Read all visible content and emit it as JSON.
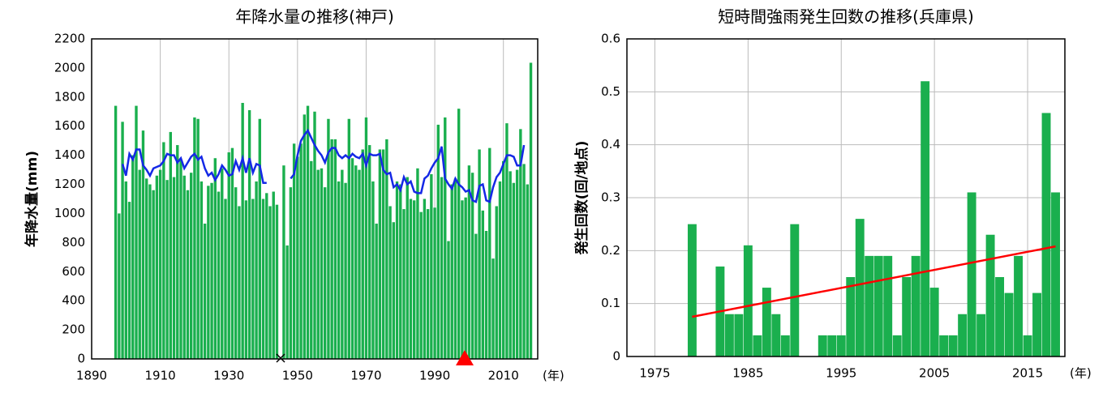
{
  "chart_data": [
    {
      "type": "bar",
      "title": "年降水量の推移(神戸)",
      "y_label": "年降水量(mm)",
      "x_unit": "(年)",
      "x": [
        1897,
        1898,
        1899,
        1900,
        1901,
        1902,
        1903,
        1904,
        1905,
        1906,
        1907,
        1908,
        1909,
        1910,
        1911,
        1912,
        1913,
        1914,
        1915,
        1916,
        1917,
        1918,
        1919,
        1920,
        1921,
        1922,
        1923,
        1924,
        1925,
        1926,
        1927,
        1928,
        1929,
        1930,
        1931,
        1932,
        1933,
        1934,
        1935,
        1936,
        1937,
        1938,
        1939,
        1940,
        1941,
        1942,
        1943,
        1944,
        1945,
        1946,
        1947,
        1948,
        1949,
        1950,
        1951,
        1952,
        1953,
        1954,
        1955,
        1956,
        1957,
        1958,
        1959,
        1960,
        1961,
        1962,
        1963,
        1964,
        1965,
        1966,
        1967,
        1968,
        1969,
        1970,
        1971,
        1972,
        1973,
        1974,
        1975,
        1976,
        1977,
        1978,
        1979,
        1980,
        1981,
        1982,
        1983,
        1984,
        1985,
        1986,
        1987,
        1988,
        1989,
        1990,
        1991,
        1992,
        1993,
        1994,
        1995,
        1996,
        1997,
        1998,
        1999,
        2000,
        2001,
        2002,
        2003,
        2004,
        2005,
        2006,
        2007,
        2008,
        2009,
        2010,
        2011,
        2012,
        2013,
        2014,
        2015,
        2016,
        2017,
        2018
      ],
      "series": [
        {
          "type": "bar",
          "color": "#1aaf4e",
          "values": [
            1740,
            1000,
            1630,
            1220,
            1080,
            1400,
            1740,
            1300,
            1570,
            1240,
            1200,
            1160,
            1260,
            1300,
            1490,
            1230,
            1560,
            1250,
            1470,
            1370,
            1260,
            1160,
            1280,
            1660,
            1650,
            1220,
            930,
            1190,
            1210,
            1380,
            1150,
            1310,
            1100,
            1420,
            1450,
            1180,
            1050,
            1760,
            1090,
            1710,
            1100,
            1220,
            1650,
            1100,
            1140,
            1050,
            1150,
            1060,
            null,
            1330,
            780,
            1180,
            1480,
            1390,
            1480,
            1680,
            1740,
            1360,
            1700,
            1300,
            1310,
            1180,
            1650,
            1510,
            1510,
            1220,
            1300,
            1210,
            1650,
            1380,
            1330,
            1300,
            1440,
            1660,
            1470,
            1220,
            930,
            1440,
            1440,
            1510,
            1050,
            940,
            1220,
            1200,
            1030,
            1250,
            1100,
            1090,
            1310,
            1010,
            1100,
            1030,
            1270,
            1040,
            1610,
            1250,
            1660,
            810,
            1200,
            1240,
            1720,
            1090,
            1110,
            1330,
            1280,
            860,
            1440,
            1020,
            880,
            1450,
            690,
            1050,
            1220,
            1360,
            1620,
            1290,
            1210,
            1300,
            1580,
            1340,
            1200,
            2036
          ]
        },
        {
          "type": "line",
          "color": "#1428e6",
          "values": [
            null,
            null,
            1340,
            1260,
            1410,
            1370,
            1440,
            1440,
            1330,
            1300,
            1260,
            1310,
            1320,
            1330,
            1360,
            1410,
            1400,
            1400,
            1350,
            1380,
            1310,
            1350,
            1390,
            1410,
            1370,
            1390,
            1310,
            1260,
            1280,
            1230,
            1270,
            1330,
            1300,
            1260,
            1270,
            1360,
            1300,
            1380,
            1280,
            1380,
            1280,
            1340,
            1330,
            1210,
            1210,
            null,
            null,
            null,
            null,
            null,
            null,
            1240,
            1270,
            1400,
            1500,
            1540,
            1570,
            1520,
            1470,
            1430,
            1400,
            1350,
            1420,
            1450,
            1450,
            1400,
            1380,
            1400,
            1380,
            1410,
            1390,
            1380,
            1410,
            1330,
            1410,
            1400,
            1400,
            1410,
            1300,
            1270,
            1280,
            1180,
            1200,
            1160,
            1250,
            1200,
            1220,
            1150,
            1140,
            1140,
            1240,
            1260,
            1310,
            1350,
            1380,
            1460,
            1240,
            1200,
            1170,
            1240,
            1200,
            1180,
            1150,
            1160,
            1090,
            1080,
            1190,
            1200,
            1090,
            1080,
            1180,
            1250,
            1280,
            1340,
            1400,
            1400,
            1390,
            1330,
            1330,
            1470,
            null,
            null
          ]
        }
      ],
      "xlim": [
        1890,
        2020
      ],
      "xticks": [
        1890,
        1910,
        1930,
        1950,
        1970,
        1990,
        2010
      ],
      "ylim": [
        0,
        2200
      ],
      "yticks": [
        0,
        200,
        400,
        600,
        800,
        1000,
        1200,
        1400,
        1600,
        1800,
        2000,
        2200
      ],
      "grid_x": true,
      "grid_y": false
    },
    {
      "type": "bar",
      "title": "短時間強雨発生回数の推移(兵庫県)",
      "y_label": "発生回数(回/地点)",
      "x_unit": "(年)",
      "x": [
        1979,
        1980,
        1981,
        1982,
        1983,
        1984,
        1985,
        1986,
        1987,
        1988,
        1989,
        1990,
        1991,
        1992,
        1993,
        1994,
        1995,
        1996,
        1997,
        1998,
        1999,
        2000,
        2001,
        2002,
        2003,
        2004,
        2005,
        2006,
        2007,
        2008,
        2009,
        2010,
        2011,
        2012,
        2013,
        2014,
        2015,
        2016,
        2017,
        2018
      ],
      "series": [
        {
          "type": "bar",
          "color": "#1aaf4e",
          "values": [
            0.25,
            0,
            0,
            0.17,
            0.08,
            0.08,
            0.21,
            0.04,
            0.13,
            0.08,
            0.04,
            0.25,
            0,
            0,
            0.04,
            0.04,
            0.04,
            0.15,
            0.26,
            0.19,
            0.19,
            0.19,
            0.04,
            0.15,
            0.19,
            0.52,
            0.13,
            0.04,
            0.04,
            0.08,
            0.31,
            0.08,
            0.23,
            0.15,
            0.12,
            0.19,
            0.04,
            0.12,
            0.46,
            0.31
          ]
        },
        {
          "type": "line",
          "color": "#ff0000",
          "x": [
            1979,
            2018
          ],
          "values": [
            0.075,
            0.208
          ]
        }
      ],
      "xlim": [
        1972,
        2019
      ],
      "xticks": [
        1975,
        1985,
        1995,
        2005,
        2015
      ],
      "ylim": [
        0,
        0.6
      ],
      "yticks": [
        0,
        0.1,
        0.2,
        0.3,
        0.4,
        0.5,
        0.6
      ],
      "grid_x": true,
      "grid_y": true
    }
  ]
}
